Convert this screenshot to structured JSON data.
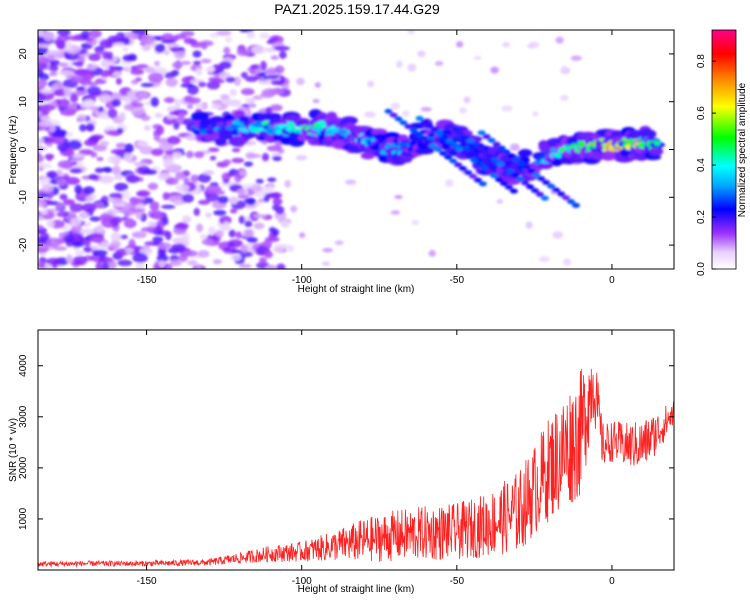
{
  "title": "PAZ1.2025.159.17.44.G29",
  "chart_data": [
    {
      "type": "heatmap",
      "xlabel": "Height of straight line (km)",
      "ylabel": "Frequency (Hz)",
      "xlim": [
        -185,
        20
      ],
      "ylim": [
        -25,
        25
      ],
      "x_ticks": [
        -150,
        -100,
        -50,
        0
      ],
      "y_ticks": [
        -20,
        -10,
        0,
        10,
        20
      ],
      "x_tick_labels": [
        "-150",
        "-100",
        "-50",
        "0"
      ],
      "y_tick_labels": [
        "-20",
        "-10",
        "0",
        "10",
        "20"
      ],
      "colorbar": {
        "label": "Normalized spectral amplitude",
        "range": [
          0,
          0.92
        ],
        "ticks": [
          0,
          0.2,
          0.4,
          0.6,
          0.8
        ],
        "tick_labels": [
          "0.0",
          "0.2",
          "0.4",
          "0.6",
          "0.8"
        ]
      },
      "ridge": [
        {
          "x": -135,
          "y": 4.5,
          "amp": 0.3
        },
        {
          "x": -125,
          "y": 4.5,
          "amp": 0.35
        },
        {
          "x": -115,
          "y": 4.5,
          "amp": 0.45
        },
        {
          "x": -105,
          "y": 4.5,
          "amp": 0.5
        },
        {
          "x": -95,
          "y": 4.5,
          "amp": 0.5
        },
        {
          "x": -88,
          "y": 4.0,
          "amp": 0.45
        },
        {
          "x": -82,
          "y": 2.5,
          "amp": 0.45
        },
        {
          "x": -76,
          "y": 1.0,
          "amp": 0.4
        },
        {
          "x": -70,
          "y": -0.5,
          "amp": 0.4
        },
        {
          "x": -62,
          "y": 2.5,
          "amp": 0.3
        },
        {
          "x": -55,
          "y": 3.0,
          "amp": 0.35
        },
        {
          "x": -48,
          "y": 1.0,
          "amp": 0.3
        },
        {
          "x": -40,
          "y": -2.0,
          "amp": 0.3
        },
        {
          "x": -32,
          "y": -4.0,
          "amp": 0.25
        },
        {
          "x": -20,
          "y": -1.5,
          "amp": 0.4
        },
        {
          "x": -12,
          "y": 0.3,
          "amp": 0.55
        },
        {
          "x": -5,
          "y": 0.8,
          "amp": 0.75
        },
        {
          "x": 0,
          "y": 0.8,
          "amp": 0.9
        },
        {
          "x": 8,
          "y": 1.0,
          "amp": 0.7
        },
        {
          "x": 15,
          "y": 1.5,
          "amp": 0.6
        }
      ]
    },
    {
      "type": "line",
      "xlabel": "Height of straight line (km)",
      "ylabel": "SNR (10 * v/v)",
      "xlim": [
        -185,
        20
      ],
      "ylim": [
        0,
        4700
      ],
      "x_ticks": [
        -150,
        -100,
        -50,
        0
      ],
      "y_ticks": [
        1000,
        2000,
        3000,
        4000
      ],
      "x_tick_labels": [
        "-150",
        "-100",
        "-50",
        "0"
      ],
      "y_tick_labels": [
        "1000",
        "2000",
        "3000",
        "4000"
      ],
      "color": "#ff2020",
      "x": [
        -185,
        -170,
        -150,
        -130,
        -120,
        -110,
        -100,
        -90,
        -80,
        -70,
        -60,
        -50,
        -40,
        -30,
        -25,
        -20,
        -15,
        -10,
        -6,
        -3,
        0,
        5,
        10,
        15,
        20
      ],
      "y": [
        100,
        110,
        110,
        130,
        200,
        270,
        300,
        380,
        450,
        520,
        560,
        580,
        700,
        900,
        1300,
        1700,
        2000,
        2300,
        3500,
        2300,
        2400,
        2300,
        2300,
        2600,
        3000
      ],
      "noise": [
        60,
        60,
        60,
        70,
        120,
        180,
        220,
        320,
        480,
        560,
        600,
        620,
        700,
        900,
        1000,
        1150,
        1300,
        1400,
        900,
        500,
        450,
        500,
        550,
        450,
        300
      ]
    }
  ]
}
